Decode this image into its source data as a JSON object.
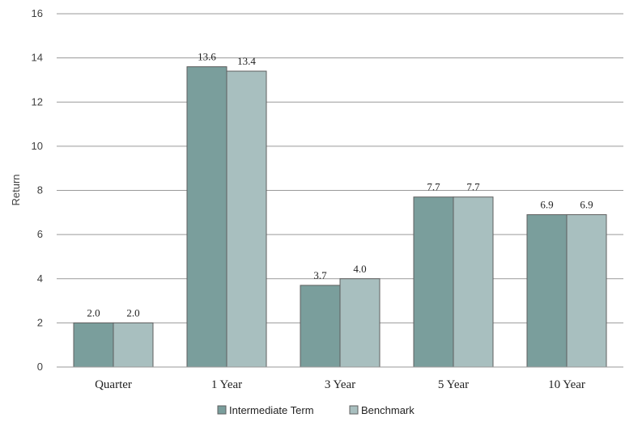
{
  "chart_data": {
    "type": "bar",
    "title": "",
    "xlabel": "",
    "ylabel": "Return",
    "ylim": [
      0,
      16
    ],
    "yticks": [
      0,
      2,
      4,
      6,
      8,
      10,
      12,
      14,
      16
    ],
    "grid": true,
    "legend_position": "bottom",
    "categories": [
      "Quarter",
      "1 Year",
      "3 Year",
      "5 Year",
      "10 Year"
    ],
    "series": [
      {
        "name": "Intermediate Term",
        "values": [
          2.0,
          13.6,
          3.7,
          7.7,
          6.9
        ],
        "labels": [
          "2.0",
          "13.6",
          "3.7",
          "7.7",
          "6.9"
        ],
        "color": "#7a9e9c"
      },
      {
        "name": "Benchmark",
        "values": [
          2.0,
          13.4,
          4.0,
          7.7,
          6.9
        ],
        "labels": [
          "2.0",
          "13.4",
          "4.0",
          "7.7",
          "6.9"
        ],
        "color": "#a8bfbf"
      }
    ]
  }
}
